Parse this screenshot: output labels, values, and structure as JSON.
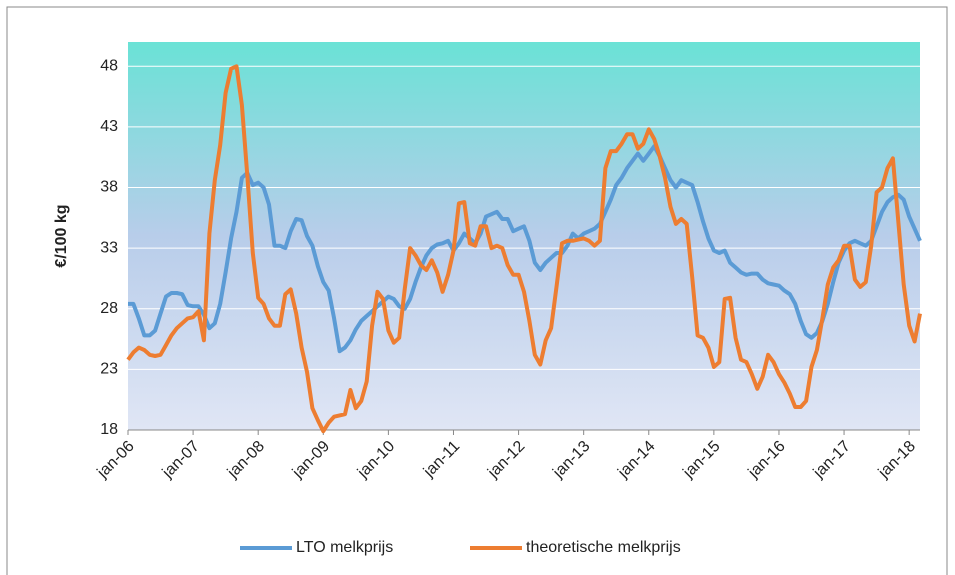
{
  "chart_data": {
    "type": "line",
    "categories": [
      "jan-06",
      null,
      null,
      null,
      null,
      null,
      null,
      null,
      null,
      null,
      null,
      null,
      "jan-07",
      null,
      null,
      null,
      null,
      null,
      null,
      null,
      null,
      null,
      null,
      null,
      "jan-08",
      null,
      null,
      null,
      null,
      null,
      null,
      null,
      null,
      null,
      null,
      null,
      "jan-09",
      null,
      null,
      null,
      null,
      null,
      null,
      null,
      null,
      null,
      null,
      null,
      "jan-10",
      null,
      null,
      null,
      null,
      null,
      null,
      null,
      null,
      null,
      null,
      null,
      "jan-11",
      null,
      null,
      null,
      null,
      null,
      null,
      null,
      null,
      null,
      null,
      null,
      "jan-12",
      null,
      null,
      null,
      null,
      null,
      null,
      null,
      null,
      null,
      null,
      null,
      "jan-13",
      null,
      null,
      null,
      null,
      null,
      null,
      null,
      null,
      null,
      null,
      null,
      "jan-14",
      null,
      null,
      null,
      null,
      null,
      null,
      null,
      null,
      null,
      null,
      null,
      "jan-15",
      null,
      null,
      null,
      null,
      null,
      null,
      null,
      null,
      null,
      null,
      null,
      "jan-16",
      null,
      null,
      null,
      null,
      null,
      null,
      null,
      null,
      null,
      null,
      null,
      "jan-17",
      null,
      null,
      null,
      null,
      null,
      null,
      null,
      null,
      null,
      null,
      null,
      "jan-18",
      null,
      null
    ],
    "series": [
      {
        "name": "LTO melkprijs",
        "color": "#5b9bd5",
        "values": [
          28.4,
          28.4,
          27.2,
          25.8,
          25.8,
          26.2,
          27.6,
          29.0,
          29.3,
          29.3,
          29.2,
          28.3,
          28.2,
          28.2,
          27.5,
          26.4,
          26.8,
          28.4,
          31.0,
          33.8,
          36.0,
          38.8,
          39.2,
          38.2,
          38.4,
          38.0,
          36.6,
          33.2,
          33.2,
          33.0,
          34.4,
          35.4,
          35.3,
          34.0,
          33.2,
          31.5,
          30.2,
          29.5,
          27.2,
          24.5,
          24.8,
          25.4,
          26.3,
          27.0,
          27.4,
          27.8,
          28.2,
          28.6,
          29.0,
          28.8,
          28.2,
          28.0,
          28.8,
          30.2,
          31.4,
          32.4,
          33.0,
          33.3,
          33.4,
          33.6,
          32.8,
          33.4,
          34.2,
          33.8,
          33.4,
          34.2,
          35.6,
          35.8,
          36.0,
          35.4,
          35.4,
          34.4,
          34.6,
          34.8,
          33.6,
          31.8,
          31.2,
          31.8,
          32.2,
          32.6,
          32.6,
          33.2,
          34.2,
          33.8,
          34.2,
          34.4,
          34.6,
          35.0,
          36.0,
          37.0,
          38.2,
          38.8,
          39.6,
          40.2,
          40.8,
          40.2,
          40.8,
          41.4,
          40.6,
          39.6,
          38.6,
          38.0,
          38.6,
          38.4,
          38.2,
          36.8,
          35.2,
          33.8,
          32.8,
          32.6,
          32.8,
          31.8,
          31.4,
          31.0,
          30.8,
          30.9,
          30.9,
          30.4,
          30.1,
          30.0,
          29.9,
          29.5,
          29.2,
          28.4,
          27.0,
          25.9,
          25.6,
          26.0,
          27.0,
          28.4,
          30.2,
          31.8,
          32.8,
          33.4,
          33.6,
          33.4,
          33.2,
          33.6,
          34.8,
          36.0,
          36.8,
          37.2,
          37.4,
          37.0,
          35.6,
          34.6,
          33.6
        ]
      },
      {
        "name": "theoretische melkprijs",
        "color": "#ed7d31",
        "values": [
          23.8,
          24.4,
          24.8,
          24.6,
          24.2,
          24.1,
          24.2,
          25.0,
          25.8,
          26.4,
          26.8,
          27.2,
          27.3,
          27.8,
          25.4,
          34.2,
          38.6,
          41.5,
          45.8,
          47.8,
          48.0,
          44.8,
          39.0,
          32.6,
          28.9,
          28.4,
          27.2,
          26.6,
          26.6,
          29.2,
          29.6,
          27.6,
          24.8,
          22.8,
          19.8,
          18.8,
          17.9,
          18.6,
          19.1,
          19.2,
          19.3,
          21.3,
          19.8,
          20.4,
          22.0,
          26.6,
          29.4,
          28.8,
          26.2,
          25.2,
          25.6,
          29.6,
          33.0,
          32.4,
          31.6,
          31.2,
          32.0,
          31.0,
          29.4,
          30.8,
          32.8,
          36.7,
          36.8,
          33.4,
          33.2,
          34.8,
          34.8,
          33.0,
          33.2,
          33.0,
          31.6,
          30.8,
          30.8,
          29.4,
          27.0,
          24.2,
          23.4,
          25.4,
          26.4,
          29.8,
          33.4,
          33.6,
          33.6,
          33.7,
          33.8,
          33.6,
          33.2,
          33.6,
          39.6,
          41.0,
          41.0,
          41.6,
          42.4,
          42.4,
          41.2,
          41.6,
          42.8,
          42.0,
          40.6,
          38.8,
          36.4,
          35.0,
          35.4,
          35.0,
          30.6,
          25.8,
          25.6,
          24.8,
          23.2,
          23.6,
          28.8,
          28.9,
          25.6,
          23.8,
          23.6,
          22.6,
          21.4,
          22.4,
          24.2,
          23.6,
          22.6,
          21.9,
          21.0,
          19.9,
          19.9,
          20.4,
          23.2,
          24.6,
          27.2,
          30.0,
          31.4,
          32.0,
          33.2,
          33.2,
          30.4,
          29.8,
          30.2,
          33.2,
          37.6,
          38.0,
          39.6,
          40.4,
          35.2,
          30.0,
          26.6,
          25.3,
          27.6
        ]
      }
    ],
    "y_label": "€/100 kg",
    "ylim": [
      18,
      50
    ],
    "yticks": [
      18,
      23,
      28,
      33,
      38,
      43,
      48
    ],
    "grid": true,
    "legend": "bottom"
  }
}
